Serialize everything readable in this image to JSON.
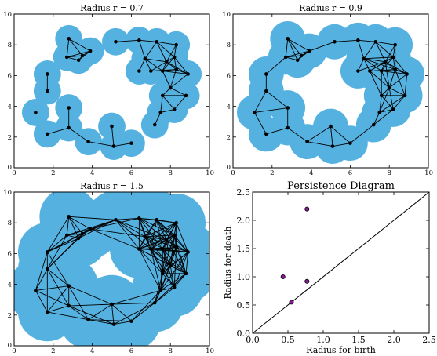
{
  "colors": {
    "cover": "#55b2e0",
    "edge": "#000000",
    "pd_point": "#8b1a9a"
  },
  "chart_data": [
    {
      "type": "scatter",
      "title": "Radius r = 0.7",
      "r": 0.7,
      "xlim": [
        0,
        10
      ],
      "ylim": [
        0,
        10
      ],
      "xticks": [
        "0",
        "2",
        "4",
        "6",
        "8",
        "10"
      ],
      "yticks": [
        "0",
        "2",
        "4",
        "6",
        "8",
        "10"
      ],
      "points": [
        [
          2.8,
          8.4
        ],
        [
          3.9,
          7.6
        ],
        [
          2.7,
          7.2
        ],
        [
          3.3,
          7.0
        ],
        [
          3.5,
          7.3
        ],
        [
          5.2,
          8.2
        ],
        [
          6.4,
          8.3
        ],
        [
          7.3,
          8.2
        ],
        [
          8.3,
          8.0
        ],
        [
          6.7,
          7.1
        ],
        [
          7.8,
          6.9
        ],
        [
          8.2,
          7.2
        ],
        [
          6.4,
          6.3
        ],
        [
          7.0,
          6.3
        ],
        [
          7.6,
          6.3
        ],
        [
          8.3,
          6.4
        ],
        [
          8.9,
          6.1
        ],
        [
          8.0,
          5.2
        ],
        [
          7.6,
          4.7
        ],
        [
          8.8,
          4.7
        ],
        [
          8.2,
          3.8
        ],
        [
          7.5,
          3.6
        ],
        [
          1.7,
          6.1
        ],
        [
          1.7,
          5.0
        ],
        [
          1.1,
          3.6
        ],
        [
          2.8,
          3.9
        ],
        [
          2.8,
          2.6
        ],
        [
          1.7,
          2.2
        ],
        [
          5.0,
          2.7
        ],
        [
          3.8,
          1.7
        ],
        [
          5.1,
          1.4
        ],
        [
          6.0,
          1.6
        ],
        [
          7.2,
          2.8
        ]
      ]
    },
    {
      "type": "scatter",
      "title": "Radius r = 0.9",
      "r": 0.9,
      "xlim": [
        0,
        10
      ],
      "ylim": [
        0,
        10
      ],
      "xticks": [
        "0",
        "2",
        "4",
        "6",
        "8",
        "10"
      ],
      "yticks": [
        "0",
        "2",
        "4",
        "6",
        "8",
        "10"
      ],
      "points": [
        [
          2.8,
          8.4
        ],
        [
          3.9,
          7.6
        ],
        [
          2.7,
          7.2
        ],
        [
          3.3,
          7.0
        ],
        [
          3.5,
          7.3
        ],
        [
          5.2,
          8.2
        ],
        [
          6.4,
          8.3
        ],
        [
          7.3,
          8.2
        ],
        [
          8.3,
          8.0
        ],
        [
          6.7,
          7.1
        ],
        [
          7.8,
          6.9
        ],
        [
          8.2,
          7.2
        ],
        [
          6.4,
          6.3
        ],
        [
          7.0,
          6.3
        ],
        [
          7.6,
          6.3
        ],
        [
          8.3,
          6.4
        ],
        [
          8.9,
          6.1
        ],
        [
          8.0,
          5.2
        ],
        [
          7.6,
          4.7
        ],
        [
          8.8,
          4.7
        ],
        [
          8.2,
          3.8
        ],
        [
          7.5,
          3.6
        ],
        [
          1.7,
          6.1
        ],
        [
          1.7,
          5.0
        ],
        [
          1.1,
          3.6
        ],
        [
          2.8,
          3.9
        ],
        [
          2.8,
          2.6
        ],
        [
          1.7,
          2.2
        ],
        [
          5.0,
          2.7
        ],
        [
          3.8,
          1.7
        ],
        [
          5.1,
          1.4
        ],
        [
          6.0,
          1.6
        ],
        [
          7.2,
          2.8
        ]
      ]
    },
    {
      "type": "scatter",
      "title": "Radius r = 1.5",
      "r": 1.5,
      "xlim": [
        0,
        10
      ],
      "ylim": [
        0,
        10
      ],
      "xticks": [
        "0",
        "2",
        "4",
        "6",
        "8",
        "10"
      ],
      "yticks": [
        "0",
        "2",
        "4",
        "6",
        "8",
        "10"
      ],
      "points": [
        [
          2.8,
          8.4
        ],
        [
          3.9,
          7.6
        ],
        [
          2.7,
          7.2
        ],
        [
          3.3,
          7.0
        ],
        [
          3.5,
          7.3
        ],
        [
          5.2,
          8.2
        ],
        [
          6.4,
          8.3
        ],
        [
          7.3,
          8.2
        ],
        [
          8.3,
          8.0
        ],
        [
          6.7,
          7.1
        ],
        [
          7.8,
          6.9
        ],
        [
          8.2,
          7.2
        ],
        [
          6.4,
          6.3
        ],
        [
          7.0,
          6.3
        ],
        [
          7.6,
          6.3
        ],
        [
          8.3,
          6.4
        ],
        [
          8.9,
          6.1
        ],
        [
          8.0,
          5.2
        ],
        [
          7.6,
          4.7
        ],
        [
          8.8,
          4.7
        ],
        [
          8.2,
          3.8
        ],
        [
          7.5,
          3.6
        ],
        [
          1.7,
          6.1
        ],
        [
          1.7,
          5.0
        ],
        [
          1.1,
          3.6
        ],
        [
          2.8,
          3.9
        ],
        [
          2.8,
          2.6
        ],
        [
          1.7,
          2.2
        ],
        [
          5.0,
          2.7
        ],
        [
          3.8,
          1.7
        ],
        [
          5.1,
          1.4
        ],
        [
          6.0,
          1.6
        ],
        [
          7.2,
          2.8
        ]
      ]
    },
    {
      "type": "scatter",
      "title": "Persistence Diagram",
      "xlabel": "Radius for birth",
      "ylabel": "Radius for death",
      "xlim": [
        0,
        2.5
      ],
      "ylim": [
        0,
        2.5
      ],
      "xticks": [
        "0.0",
        "0.5",
        "1.0",
        "1.5",
        "2.0",
        "2.5"
      ],
      "yticks": [
        "0.0",
        "0.5",
        "1.0",
        "1.5",
        "2.0",
        "2.5"
      ],
      "diagonal": true,
      "points": [
        [
          0.43,
          1.0
        ],
        [
          0.55,
          0.55
        ],
        [
          0.77,
          2.2
        ],
        [
          0.77,
          0.92
        ]
      ]
    }
  ]
}
